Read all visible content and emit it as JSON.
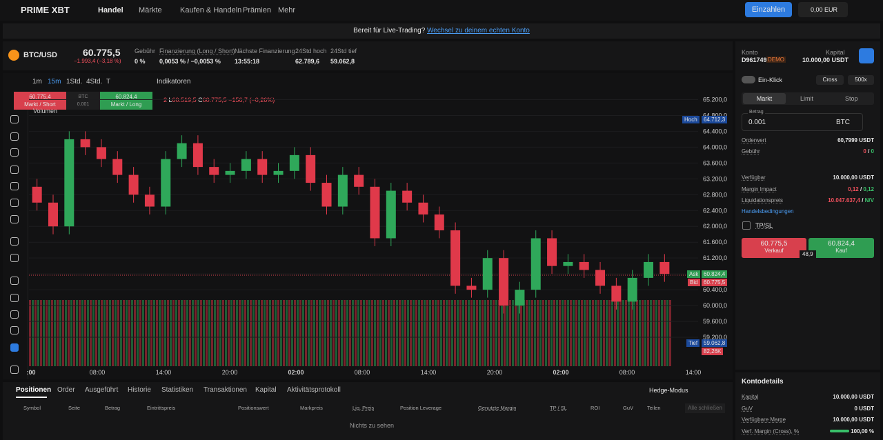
{
  "nav": {
    "logo": "PRIME XBT",
    "items": [
      "Handel",
      "Märkte",
      "Kaufen & Handeln",
      "Prämien",
      "Mehr"
    ],
    "deposit": "Einzahlen",
    "balance": "0,00 EUR"
  },
  "banner": {
    "text": "Bereit für Live-Trading?",
    "link": "Wechsel zu deinem echten Konto"
  },
  "ticker": {
    "symbol": "BTC/USD",
    "price": "60.775,5",
    "change": "−1.993,4 (−3,18 %)",
    "stats": [
      {
        "label": "Gebühr",
        "value": "0 %"
      },
      {
        "label": "Finanzierung (Long / Short)",
        "value": "0,0053 % / −0,0053 %"
      },
      {
        "label": "Nächste Finanzierung",
        "value": "13:55:18"
      },
      {
        "label": "24Std hoch",
        "value": "62.789,6"
      },
      {
        "label": "24Std tief",
        "value": "59.062,8"
      }
    ]
  },
  "toolbar": {
    "intervals": [
      "1m",
      "15m",
      "1Std.",
      "4Std.",
      "T"
    ],
    "indicators": "Indikatoren"
  },
  "quick": {
    "sell_price": "60.775,4",
    "sell_label": "Markt / Short",
    "unit": "BTC",
    "amount": "0.001",
    "buy_price": "60.824,4",
    "buy_label": "Markt / Long"
  },
  "legend": {
    "n": "2",
    "l": "L",
    "low": "60.519,5",
    "c": "C",
    "close": "60.775,5",
    "change": "−156,7 (−0,26%)",
    "volume": "Volumen"
  },
  "price_labels": {
    "high_label": "Hoch",
    "high": "64.712,3",
    "ask_label": "Ask",
    "ask": "60.824,4",
    "bid_label": "Bid",
    "bid": "60.775,5",
    "low_label": "Tief",
    "low": "59.062,8",
    "volume": "82,26K"
  },
  "chart": {
    "type": "candlestick",
    "ylim": [
      58800,
      65400
    ],
    "yticks": [
      {
        "value": 65200,
        "label": "65.200,0"
      },
      {
        "value": 64800,
        "label": "64.800,0"
      },
      {
        "value": 64400,
        "label": "64.400,0"
      },
      {
        "value": 64000,
        "label": "64.000,0"
      },
      {
        "value": 63600,
        "label": "63.600,0"
      },
      {
        "value": 63200,
        "label": "63.200,0"
      },
      {
        "value": 62800,
        "label": "62.800,0"
      },
      {
        "value": 62400,
        "label": "62.400,0"
      },
      {
        "value": 62000,
        "label": "62.000,0"
      },
      {
        "value": 61600,
        "label": "61.600,0"
      },
      {
        "value": 61200,
        "label": "61.200,0"
      },
      {
        "value": 60800,
        "label": "60.800,0"
      },
      {
        "value": 60400,
        "label": "60.400,0"
      },
      {
        "value": 60000,
        "label": "60.000,0"
      },
      {
        "value": 59600,
        "label": "59.600,0"
      },
      {
        "value": 59200,
        "label": "59.200,0"
      }
    ],
    "xticks": [
      ":00",
      "08:00",
      "14:00",
      "20:00",
      "02:00",
      "08:00",
      "14:00",
      "20:00",
      "02:00",
      "08:00",
      "14:00"
    ],
    "open": [
      63000,
      62600,
      62000,
      64200,
      64000,
      63700,
      63300,
      62800,
      62500,
      63700,
      64100,
      63500,
      63300,
      63400,
      63700,
      63300,
      63400,
      63800,
      63100,
      62500,
      63300,
      63000,
      61700,
      62900,
      62600,
      62300,
      61900,
      60500,
      60400,
      61200,
      60000,
      60400,
      61700,
      61000,
      61100,
      60900,
      60500,
      60100,
      60700,
      61100
    ],
    "high": [
      63200,
      62800,
      64400,
      64400,
      64200,
      63900,
      63500,
      63000,
      63900,
      64300,
      64300,
      63700,
      63600,
      63900,
      63900,
      63600,
      64000,
      64000,
      63300,
      63500,
      63500,
      63200,
      63100,
      63100,
      62800,
      62500,
      62100,
      60700,
      61400,
      61400,
      60600,
      61900,
      61900,
      61300,
      61300,
      61100,
      60700,
      60900,
      61300,
      61300
    ],
    "low": [
      62400,
      61800,
      61800,
      63800,
      63500,
      63100,
      62600,
      62300,
      62300,
      63500,
      63300,
      63100,
      63100,
      63200,
      63100,
      63100,
      63200,
      62900,
      62300,
      62300,
      62800,
      61500,
      61500,
      62400,
      62100,
      61700,
      60300,
      60200,
      60200,
      59800,
      59800,
      60200,
      60800,
      60800,
      60700,
      60300,
      59900,
      59900,
      60500,
      60600
    ],
    "close": [
      62600,
      62000,
      64200,
      64000,
      63700,
      63300,
      62800,
      62500,
      63700,
      64100,
      63500,
      63300,
      63400,
      63700,
      63300,
      63400,
      63800,
      63100,
      62500,
      63300,
      63000,
      61700,
      62900,
      62600,
      62300,
      61900,
      60500,
      60400,
      61200,
      60000,
      60400,
      61700,
      61000,
      61100,
      60900,
      60500,
      60100,
      60700,
      61100,
      60800
    ]
  },
  "panel": {
    "konto": "Konto",
    "account": "D961749",
    "demo": "DEMO",
    "kapital": "Kapital",
    "kapital_value": "10.000,00 USDT",
    "one_click": "Ein-Klick",
    "cross": "Cross",
    "leverage": "500x",
    "tabs": [
      "Markt",
      "Limit",
      "Stop"
    ],
    "betrag": "Betrag",
    "amount": "0.001",
    "unit": "BTC",
    "orderwert": {
      "label": "Orderwert",
      "value": "60,7999 USDT"
    },
    "fee": {
      "label": "Gebühr",
      "values": [
        "0",
        "/",
        "0"
      ]
    },
    "available": {
      "label": "Verfügbar",
      "value": "10.000,00 USDT"
    },
    "margin": {
      "label": "Margin Impact",
      "values": [
        "0,12",
        "/",
        "0,12"
      ]
    },
    "liq": {
      "label": "Liquidationspreis",
      "values": [
        "10.047.637,4",
        "/",
        "N/V"
      ]
    },
    "conditions": "Handelsbedingungen",
    "tpsl": "TP/SL",
    "sell_price": "60.775,5",
    "sell": "Verkauf",
    "spread": "48,9",
    "buy_price": "60.824,4",
    "buy": "Kauf"
  },
  "details": {
    "title": "Kontodetails",
    "rows": [
      {
        "label": "Kapital",
        "value": "10.000,00 USDT"
      },
      {
        "label": "GuV",
        "value": "0 USDT"
      },
      {
        "label": "Verfügbare Marge",
        "value": "10.000,00 USDT"
      },
      {
        "label": "Verf. Margin (Cross), %",
        "value": "100,00 %"
      }
    ]
  },
  "bottom": {
    "tabs": [
      "Positionen",
      "Order",
      "Ausgeführt",
      "Historie",
      "Statistiken",
      "Transaktionen",
      "Kapital",
      "Aktivitätsprotokoll"
    ],
    "hedge": "Hedge-Modus",
    "columns": [
      "Symbol",
      "Seite",
      "Betrag",
      "Eintrittspreis",
      "Positionswert",
      "Markpreis",
      "Liq. Preis",
      "Position Leverage",
      "Genutzte Margin",
      "TP / SL",
      "ROI",
      "GuV",
      "Teilen"
    ],
    "close_all": "Alle schließen",
    "empty": "Nichts zu sehen"
  }
}
